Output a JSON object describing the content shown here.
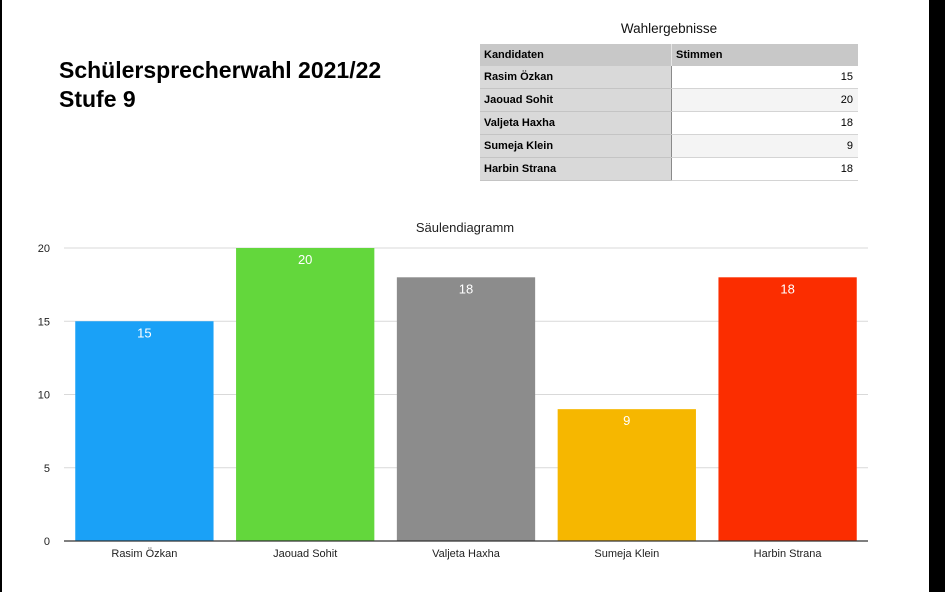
{
  "heading": {
    "line1": "Schülersprecherwahl 2021/22",
    "line2": "Stufe 9"
  },
  "table": {
    "title": "Wahlergebnisse",
    "headers": [
      "Kandidaten",
      "Stimmen"
    ],
    "rows": [
      {
        "name": "Rasim Özkan",
        "votes": "15"
      },
      {
        "name": "Jaouad Sohit",
        "votes": "20"
      },
      {
        "name": "Valjeta Haxha",
        "votes": "18"
      },
      {
        "name": "Sumeja Klein",
        "votes": "9"
      },
      {
        "name": "Harbin Strana",
        "votes": "18"
      }
    ]
  },
  "chart_data": {
    "type": "bar",
    "title": "Säulendiagramm",
    "categories": [
      "Rasim Özkan",
      "Jaouad Sohit",
      "Valjeta Haxha",
      "Sumeja Klein",
      "Harbin Strana"
    ],
    "values": [
      15,
      20,
      18,
      9,
      18
    ],
    "data_labels": [
      "15",
      "20",
      "18",
      "9",
      "18"
    ],
    "colors": [
      "#1aa1f7",
      "#63d73c",
      "#8c8c8c",
      "#f6b700",
      "#fb2d00"
    ],
    "ylim": [
      0,
      20
    ],
    "yticks": [
      0,
      5,
      10,
      15,
      20
    ],
    "ytick_labels": [
      "0",
      "5",
      "10",
      "15",
      "20"
    ],
    "grid": true,
    "legend": "none",
    "xlabel": "",
    "ylabel": ""
  }
}
